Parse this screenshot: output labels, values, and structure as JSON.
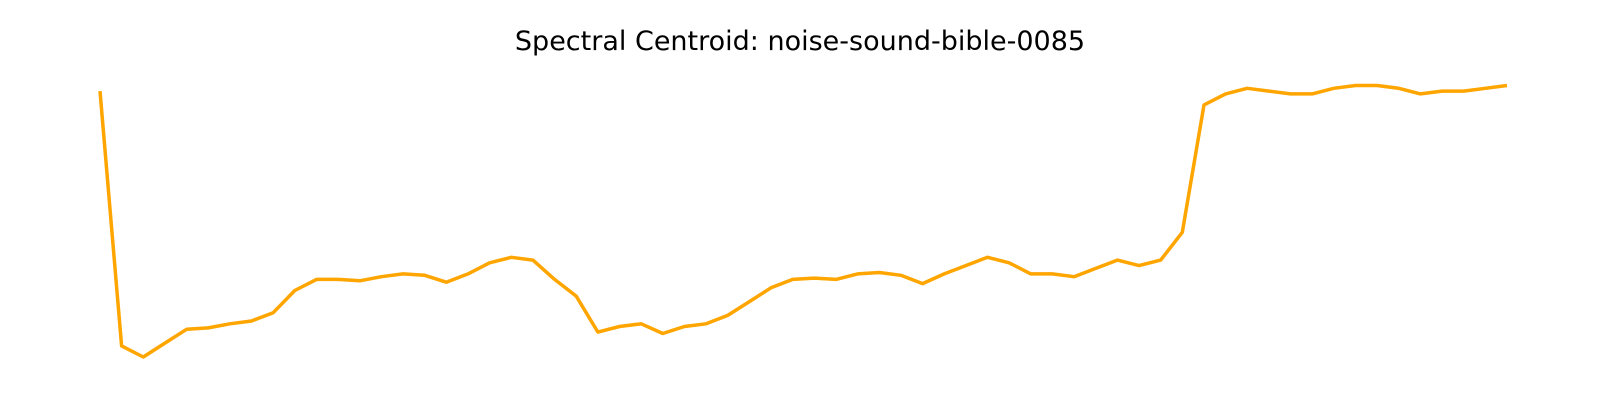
{
  "chart_data": {
    "type": "line",
    "title": "Spectral Centroid: noise-sound-bible-0085",
    "xlabel": "",
    "ylabel": "",
    "axes_visible": false,
    "grid": false,
    "legend": "none",
    "series": [
      {
        "color": "#FFA500",
        "values": [
          0.96,
          0.04,
          0.0,
          0.05,
          0.1,
          0.105,
          0.12,
          0.13,
          0.16,
          0.24,
          0.28,
          0.28,
          0.275,
          0.29,
          0.3,
          0.295,
          0.27,
          0.3,
          0.34,
          0.36,
          0.35,
          0.28,
          0.22,
          0.09,
          0.11,
          0.12,
          0.085,
          0.11,
          0.12,
          0.15,
          0.2,
          0.25,
          0.28,
          0.285,
          0.28,
          0.3,
          0.305,
          0.295,
          0.265,
          0.3,
          0.33,
          0.36,
          0.34,
          0.3,
          0.3,
          0.29,
          0.32,
          0.35,
          0.33,
          0.35,
          0.45,
          0.91,
          0.95,
          0.97,
          0.96,
          0.95,
          0.95,
          0.97,
          0.98,
          0.98,
          0.97,
          0.95,
          0.96,
          0.96,
          0.97,
          0.98
        ]
      }
    ]
  }
}
